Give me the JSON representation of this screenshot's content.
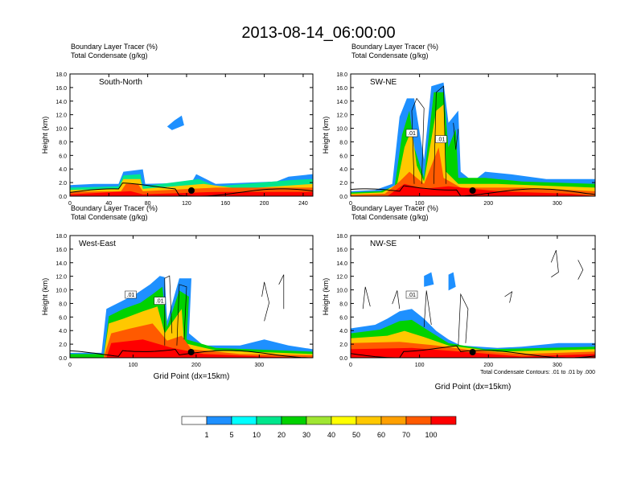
{
  "title": "2013-08-14_06:00:00",
  "chart_data": [
    {
      "type": "heatmap",
      "name": "South-North",
      "header": [
        "Boundary Layer Tracer   (%)",
        "Total Condensate   (g/kg)"
      ],
      "ylabel": "Height (km)",
      "xlabel": "",
      "xlim": [
        0,
        250
      ],
      "ylim": [
        0,
        18
      ],
      "xticks": [
        "0",
        "40",
        "80",
        "120",
        "160",
        "200",
        "240"
      ],
      "yticks": [
        "0.0",
        "2.0",
        "4.0",
        "6.0",
        "8.0",
        "10.0",
        "12.0",
        "14.0",
        "16.0",
        "18.0"
      ],
      "marker_x": 125
    },
    {
      "type": "heatmap",
      "name": "SW-NE",
      "header": [
        "Boundary Layer Tracer   (%)",
        "Total Condensate   (g/kg)"
      ],
      "ylabel": "Height (km)",
      "xlabel": "",
      "xlim": [
        0,
        355
      ],
      "ylim": [
        0,
        18
      ],
      "xticks": [
        "0",
        "100",
        "200",
        "300"
      ],
      "yticks": [
        "0.0",
        "2.0",
        "4.0",
        "6.0",
        "8.0",
        "10.0",
        "12.0",
        "14.0",
        "16.0",
        "18.0"
      ],
      "contour_labels": [
        ".01",
        ".01"
      ],
      "marker_x": 177
    },
    {
      "type": "heatmap",
      "name": "West-East",
      "header": [
        "Boundary Layer Tracer   (%)",
        "Total Condensate   (g/kg)"
      ],
      "ylabel": "Height (km)",
      "xlabel": "Grid Point (dx=15km)",
      "xlim": [
        0,
        385
      ],
      "ylim": [
        0,
        18
      ],
      "xticks": [
        "0",
        "100",
        "200",
        "300"
      ],
      "yticks": [
        "0.0",
        "2.0",
        "4.0",
        "6.0",
        "8.0",
        "10.0",
        "12.0",
        "14.0",
        "16.0",
        "18.0"
      ],
      "contour_labels": [
        ".01",
        ".01"
      ],
      "marker_x": 192
    },
    {
      "type": "heatmap",
      "name": "NW-SE",
      "header": [
        "Boundary Layer Tracer   (%)",
        "Total Condensate   (g/kg)"
      ],
      "ylabel": "Height (km)",
      "xlabel": "Grid Point (dx=15km)",
      "xlim": [
        0,
        355
      ],
      "ylim": [
        0,
        18
      ],
      "xticks": [
        "0",
        "100",
        "200",
        "300"
      ],
      "yticks": [
        "0.0",
        "2.0",
        "4.0",
        "6.0",
        "8.0",
        "10.0",
        "12.0",
        "14.0",
        "16.0",
        "18.0"
      ],
      "contour_labels": [
        ".01"
      ],
      "marker_x": 177,
      "note": "Total Condensate Contours: .01 to .01 by .000"
    }
  ],
  "legend": {
    "colors": [
      "#ffffff",
      "#1e90ff",
      "#00ffff",
      "#00e68c",
      "#00d200",
      "#a0e632",
      "#ffff00",
      "#ffc800",
      "#ffa000",
      "#ff5a00",
      "#ff0000"
    ],
    "labels": [
      "1",
      "5",
      "10",
      "20",
      "30",
      "40",
      "50",
      "60",
      "70",
      "100"
    ]
  }
}
